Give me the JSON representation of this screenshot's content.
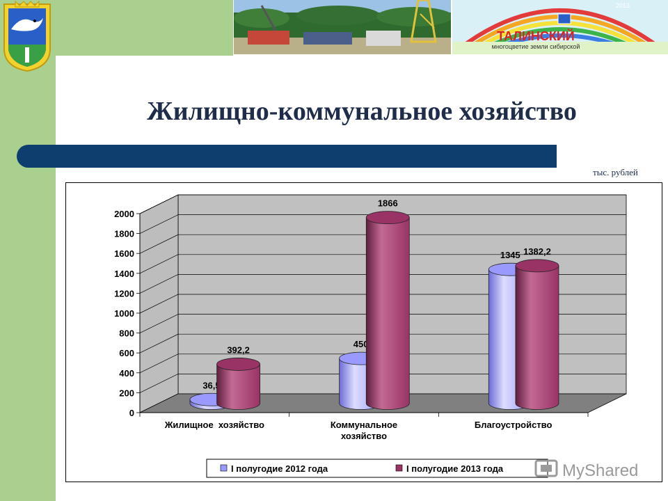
{
  "slide": {
    "title": "Жилищно-коммунальное хозяйство",
    "units": "тыс. рублей",
    "watermark": "MyShared"
  },
  "banner": {
    "logo_text": "ТАЛИНСКИЙ",
    "logo_subtext": "многоцветие земли сибирской",
    "logo_year": "2013"
  },
  "colors": {
    "side_band": "#a9d08e",
    "title_bar": "#0d3e6e",
    "series_2012": "#9999ff",
    "series_2013": "#993366",
    "wall": "#c0c0c0",
    "floor": "#808080"
  },
  "chart_data": {
    "type": "bar",
    "style": "3d-cylinder",
    "categories": [
      "Жилищное  хозяйство",
      "Коммунальное хозяйство",
      "Благоустройство"
    ],
    "series": [
      {
        "name": "I полугодие 2012 года",
        "values": [
          36.5,
          450,
          1345
        ],
        "labels": [
          "36,5",
          "450",
          "1345"
        ]
      },
      {
        "name": "I полугодие 2013 года",
        "values": [
          392.2,
          1866,
          1382.2
        ],
        "labels": [
          "392,2",
          "1866",
          "1382,2"
        ]
      }
    ],
    "ylim": [
      0,
      2000
    ],
    "yticks": [
      "0",
      "200",
      "400",
      "600",
      "800",
      "1000",
      "1200",
      "1400",
      "1600",
      "1800",
      "2000"
    ],
    "grid": true,
    "legend": "bottom"
  }
}
